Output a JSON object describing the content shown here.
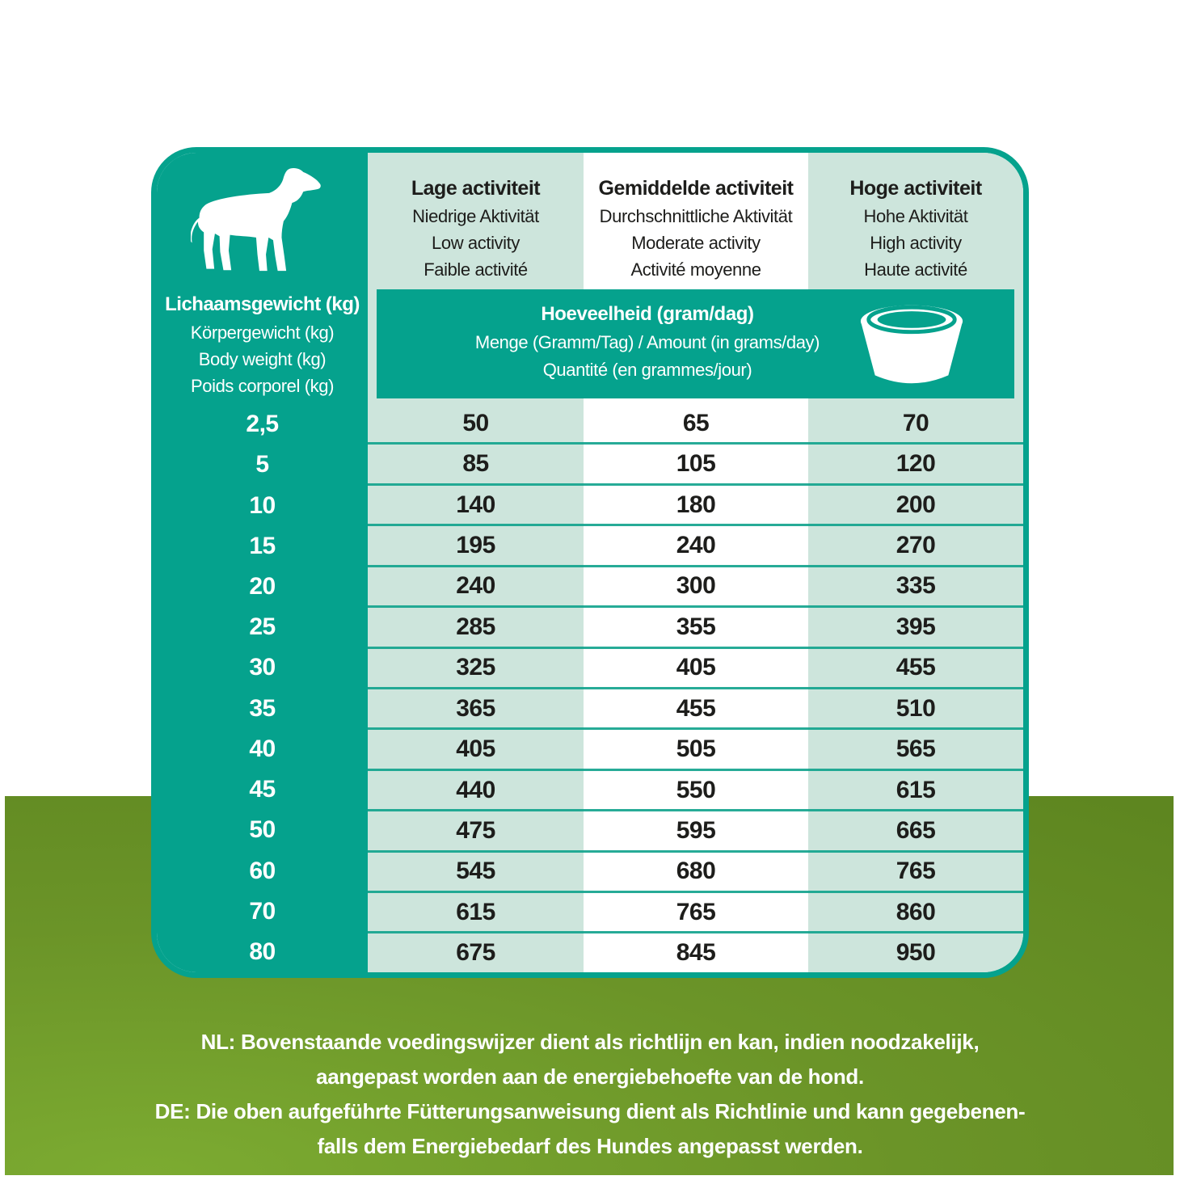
{
  "colors": {
    "teal": "#05a28d",
    "mint": "#cde5dc",
    "green_light": "#7cab31",
    "green_dark": "#5e8620",
    "text_dark": "#1d1d1b"
  },
  "table": {
    "weight_header": {
      "title": "Lichaamsgewicht (kg)",
      "subtitles": [
        "Körpergewicht (kg)",
        "Body weight (kg)",
        "Poids corporel (kg)"
      ]
    },
    "columns": [
      {
        "title": "Lage activiteit",
        "subtitles": [
          "Niedrige Aktivität",
          "Low activity",
          "Faible activité"
        ]
      },
      {
        "title": "Gemiddelde activiteit",
        "subtitles": [
          "Durchschnittliche Aktivität",
          "Moderate activity",
          "Activité moyenne"
        ]
      },
      {
        "title": "Hoge activiteit",
        "subtitles": [
          "Hohe Aktivität",
          "High activity",
          "Haute activité"
        ]
      }
    ],
    "amount_band": {
      "title": "Hoeveelheid (gram/dag)",
      "subtitles": [
        "Menge (Gramm/Tag) / Amount (in grams/day)",
        "Quantité (en grammes/jour)"
      ]
    },
    "icons": {
      "dog": "dog-silhouette-icon",
      "bowl": "dog-bowl-icon"
    },
    "rows": [
      {
        "weight": "2,5",
        "low": "50",
        "moderate": "65",
        "high": "70"
      },
      {
        "weight": "5",
        "low": "85",
        "moderate": "105",
        "high": "120"
      },
      {
        "weight": "10",
        "low": "140",
        "moderate": "180",
        "high": "200"
      },
      {
        "weight": "15",
        "low": "195",
        "moderate": "240",
        "high": "270"
      },
      {
        "weight": "20",
        "low": "240",
        "moderate": "300",
        "high": "335"
      },
      {
        "weight": "25",
        "low": "285",
        "moderate": "355",
        "high": "395"
      },
      {
        "weight": "30",
        "low": "325",
        "moderate": "405",
        "high": "455"
      },
      {
        "weight": "35",
        "low": "365",
        "moderate": "455",
        "high": "510"
      },
      {
        "weight": "40",
        "low": "405",
        "moderate": "505",
        "high": "565"
      },
      {
        "weight": "45",
        "low": "440",
        "moderate": "550",
        "high": "615"
      },
      {
        "weight": "50",
        "low": "475",
        "moderate": "595",
        "high": "665"
      },
      {
        "weight": "60",
        "low": "545",
        "moderate": "680",
        "high": "765"
      },
      {
        "weight": "70",
        "low": "615",
        "moderate": "765",
        "high": "860"
      },
      {
        "weight": "80",
        "low": "675",
        "moderate": "845",
        "high": "950"
      }
    ]
  },
  "chart_data": {
    "type": "table",
    "title": "Hoeveelheid (gram/dag) / Amount (in grams/day)",
    "columns": [
      "Lichaamsgewicht (kg)",
      "Lage activiteit",
      "Gemiddelde activiteit",
      "Hoge activiteit"
    ],
    "rows": [
      [
        "2,5",
        50,
        65,
        70
      ],
      [
        "5",
        85,
        105,
        120
      ],
      [
        "10",
        140,
        180,
        200
      ],
      [
        "15",
        195,
        240,
        270
      ],
      [
        "20",
        240,
        300,
        335
      ],
      [
        "25",
        285,
        355,
        395
      ],
      [
        "30",
        325,
        405,
        455
      ],
      [
        "35",
        365,
        455,
        510
      ],
      [
        "40",
        405,
        505,
        565
      ],
      [
        "45",
        440,
        550,
        615
      ],
      [
        "50",
        475,
        595,
        665
      ],
      [
        "60",
        545,
        680,
        765
      ],
      [
        "70",
        615,
        765,
        860
      ],
      [
        "80",
        675,
        845,
        950
      ]
    ]
  },
  "disclaimer": {
    "lines": [
      "NL: Bovenstaande voedingswijzer dient als richtlijn en kan, indien noodzakelijk,",
      "aangepast worden aan de energiebehoefte van de hond.",
      "DE: Die oben aufgeführte Fütterungsanweisung dient als Richtlinie und kann gegebenen-",
      "falls dem Energiebedarf des Hundes angepasst werden."
    ]
  }
}
